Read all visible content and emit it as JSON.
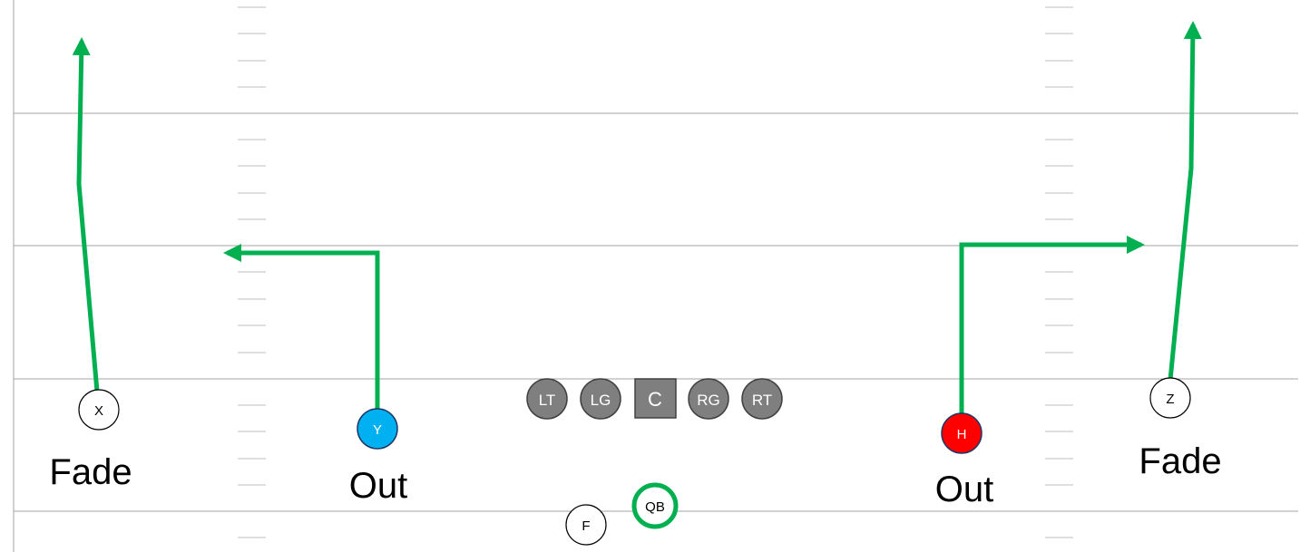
{
  "colors": {
    "route": "#00b050",
    "field_line": "#a6a6a6",
    "hash": "#bfbfbf",
    "lineman": "#7f7f7f",
    "y_fill": "#00b0f0",
    "h_fill": "#ff0000",
    "qb_ring": "#00b050"
  },
  "players": {
    "x": "X",
    "y": "Y",
    "h": "H",
    "z": "Z",
    "f": "F",
    "qb": "QB",
    "lt": "LT",
    "lg": "LG",
    "c": "C",
    "rg": "RG",
    "rt": "RT"
  },
  "routes": {
    "x": "Fade",
    "y": "Out",
    "h": "Out",
    "z": "Fade"
  }
}
